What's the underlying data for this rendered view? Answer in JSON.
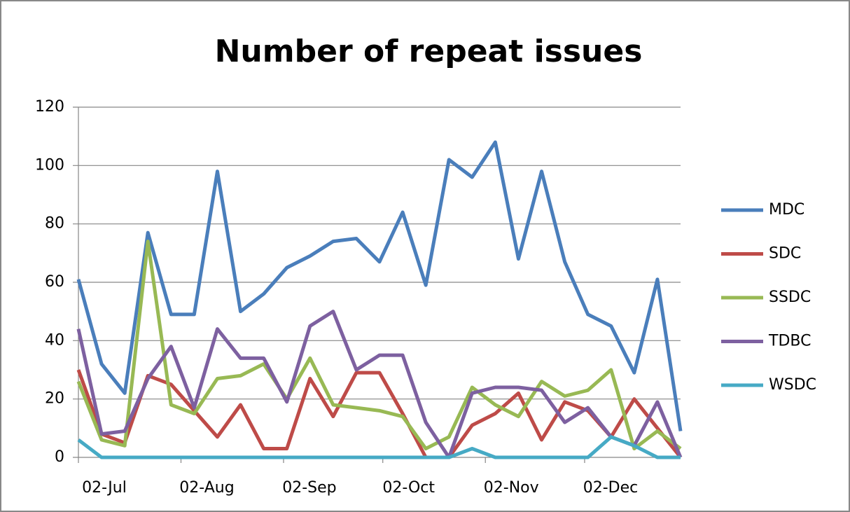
{
  "chart_data": {
    "type": "line",
    "title": "Number of repeat issues",
    "x": [
      0,
      7,
      14,
      21,
      28,
      35,
      42,
      49,
      56,
      63,
      70,
      77,
      84,
      91,
      98,
      105,
      112,
      119,
      126,
      133,
      140,
      147,
      154,
      161,
      168,
      175,
      182
    ],
    "xlim": [
      0,
      182
    ],
    "xticks": [
      {
        "value": 0,
        "label": "02-Jul"
      },
      {
        "value": 31,
        "label": "02-Aug"
      },
      {
        "value": 62,
        "label": "02-Sep"
      },
      {
        "value": 92,
        "label": "02-Oct"
      },
      {
        "value": 123,
        "label": "02-Nov"
      },
      {
        "value": 153,
        "label": "02-Dec"
      }
    ],
    "ylim": [
      0,
      120
    ],
    "yticks": [
      0,
      20,
      40,
      60,
      80,
      100,
      120
    ],
    "grid": true,
    "legend": "right",
    "series": [
      {
        "name": "MDC",
        "color": "#4a7ebb",
        "values": [
          61,
          32,
          22,
          77,
          49,
          49,
          98,
          50,
          56,
          65,
          69,
          74,
          75,
          67,
          84,
          59,
          102,
          96,
          108,
          68,
          98,
          67,
          49,
          45,
          29,
          61,
          9
        ]
      },
      {
        "name": "SDC",
        "color": "#be4b48",
        "values": [
          30,
          8,
          5,
          28,
          25,
          16,
          7,
          18,
          3,
          3,
          27,
          14,
          29,
          29,
          15,
          0,
          0,
          11,
          15,
          22,
          6,
          19,
          16,
          7,
          20,
          10,
          0
        ]
      },
      {
        "name": "SSDC",
        "color": "#98b954",
        "values": [
          26,
          6,
          4,
          74,
          18,
          15,
          27,
          28,
          32,
          20,
          34,
          18,
          17,
          16,
          14,
          3,
          7,
          24,
          18,
          14,
          26,
          21,
          23,
          30,
          3,
          9,
          3
        ]
      },
      {
        "name": "TDBC",
        "color": "#7d60a0",
        "values": [
          44,
          8,
          9,
          27,
          38,
          17,
          44,
          34,
          34,
          19,
          45,
          50,
          30,
          35,
          35,
          12,
          0,
          22,
          24,
          24,
          23,
          12,
          17,
          7,
          4,
          19,
          0
        ]
      },
      {
        "name": "WSDC",
        "color": "#46aac5",
        "values": [
          6,
          0,
          0,
          0,
          0,
          0,
          0,
          0,
          0,
          0,
          0,
          0,
          0,
          0,
          0,
          0,
          0,
          3,
          0,
          0,
          0,
          0,
          0,
          7,
          4,
          0,
          0
        ]
      }
    ]
  }
}
